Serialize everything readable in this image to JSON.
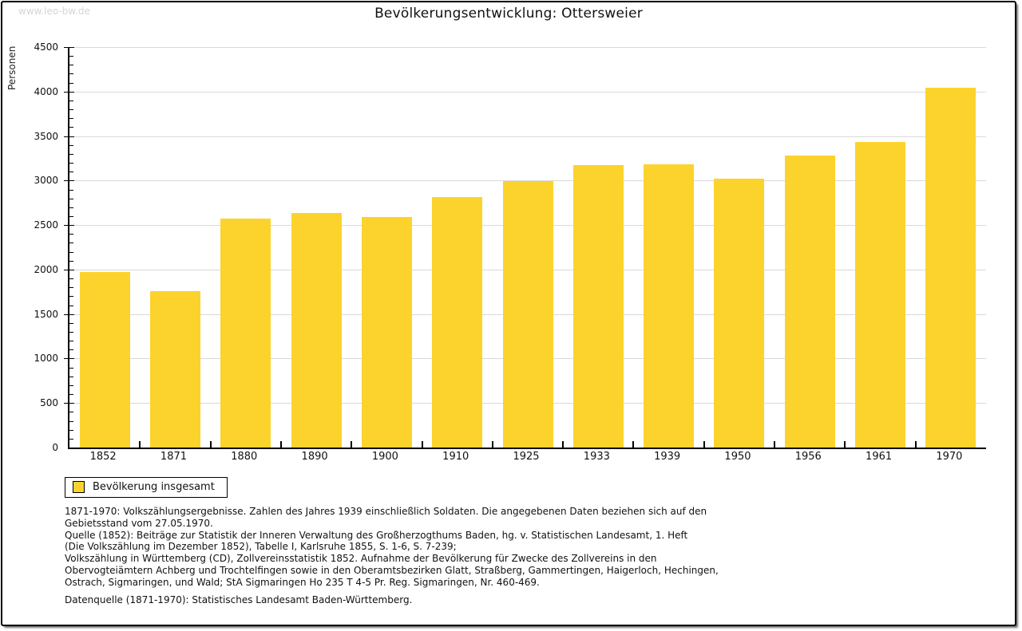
{
  "watermark": "www.leo-bw.de",
  "header": {
    "title": "Bevölkerungsentwicklung: Ottersweier"
  },
  "colors": {
    "bar": "#FCD32D",
    "grid": "#D9D9D9",
    "axis": "#000000",
    "watermark": "#D5D5D5"
  },
  "legend": {
    "label": "Bevölkerung insgesamt"
  },
  "chart_data": {
    "type": "bar",
    "title": "Bevölkerungsentwicklung: Ottersweier",
    "xlabel": "",
    "ylabel": "Personen",
    "categories": [
      "1852",
      "1871",
      "1880",
      "1890",
      "1900",
      "1910",
      "1925",
      "1933",
      "1939",
      "1950",
      "1956",
      "1961",
      "1970"
    ],
    "series": [
      {
        "name": "Bevölkerung insgesamt",
        "values": [
          1975,
          1753,
          2577,
          2632,
          2591,
          2817,
          2996,
          3173,
          3186,
          3022,
          3280,
          3431,
          4046
        ],
        "color": "#FCD32D"
      }
    ],
    "ylim": [
      0,
      4500
    ],
    "ytick_step": 500,
    "yminor_step": 100,
    "grid": true,
    "legend_position": "bottom-left"
  },
  "footer": {
    "lines": [
      "1871-1970: Volkszählungsergebnisse. Zahlen des Jahres 1939 einschließlich Soldaten. Die angegebenen Daten beziehen sich auf den",
      "Gebietsstand vom 27.05.1970.",
      "Quelle (1852): Beiträge zur Statistik der Inneren Verwaltung des Großherzogthums Baden, hg. v. Statistischen Landesamt, 1. Heft",
      "(Die Volkszählung im Dezember 1852), Tabelle I, Karlsruhe 1855, S. 1-6, S. 7-239;",
      "Volkszählung in Württemberg (CD), Zollvereinsstatistik 1852. Aufnahme der Bevölkerung für Zwecke des Zollvereins in den",
      "Obervogteiämtern Achberg und Trochtelfingen sowie in den Oberamtsbezirken Glatt, Straßberg, Gammertingen, Haigerloch, Hechingen,",
      "Ostrach, Sigmaringen, und Wald; StA Sigmaringen Ho 235 T 4-5 Pr. Reg. Sigmaringen, Nr. 460-469."
    ],
    "datenquelle": "Datenquelle (1871-1970): Statistisches Landesamt Baden-Württemberg."
  }
}
